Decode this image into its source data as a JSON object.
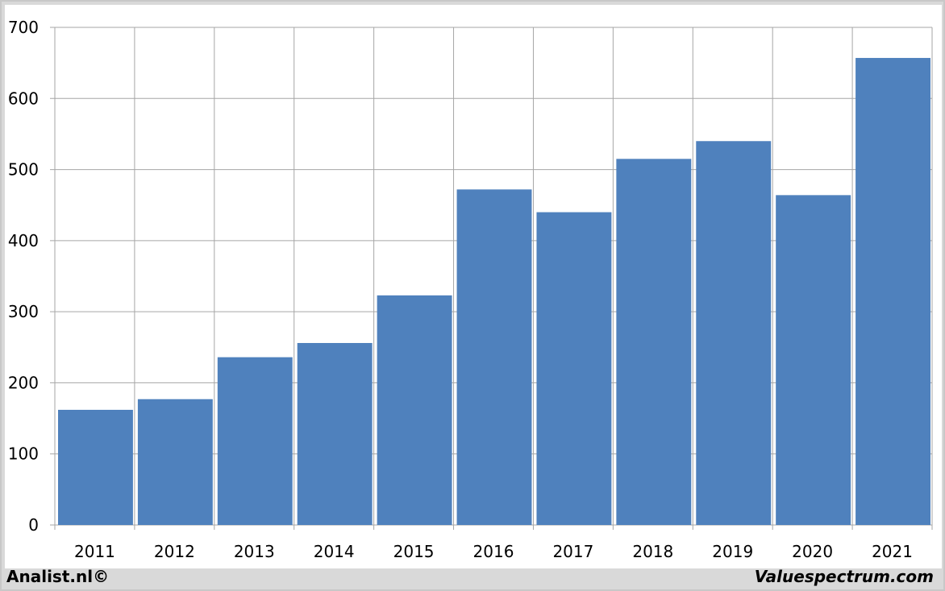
{
  "footer": {
    "left_text": "Analist.nl©",
    "right_text": "Valuespectrum.com"
  },
  "colors": {
    "bar": "#4f81bd",
    "grid": "#a6a6a6",
    "frame": "#d9d9d9"
  },
  "chart_data": {
    "type": "bar",
    "categories": [
      "2011",
      "2012",
      "2013",
      "2014",
      "2015",
      "2016",
      "2017",
      "2018",
      "2019",
      "2020",
      "2021"
    ],
    "values": [
      162,
      177,
      236,
      256,
      323,
      472,
      440,
      515,
      540,
      464,
      657
    ],
    "ylim": [
      0,
      700
    ],
    "yticks": [
      0,
      100,
      200,
      300,
      400,
      500,
      600,
      700
    ],
    "grid": true,
    "legend": "none"
  }
}
